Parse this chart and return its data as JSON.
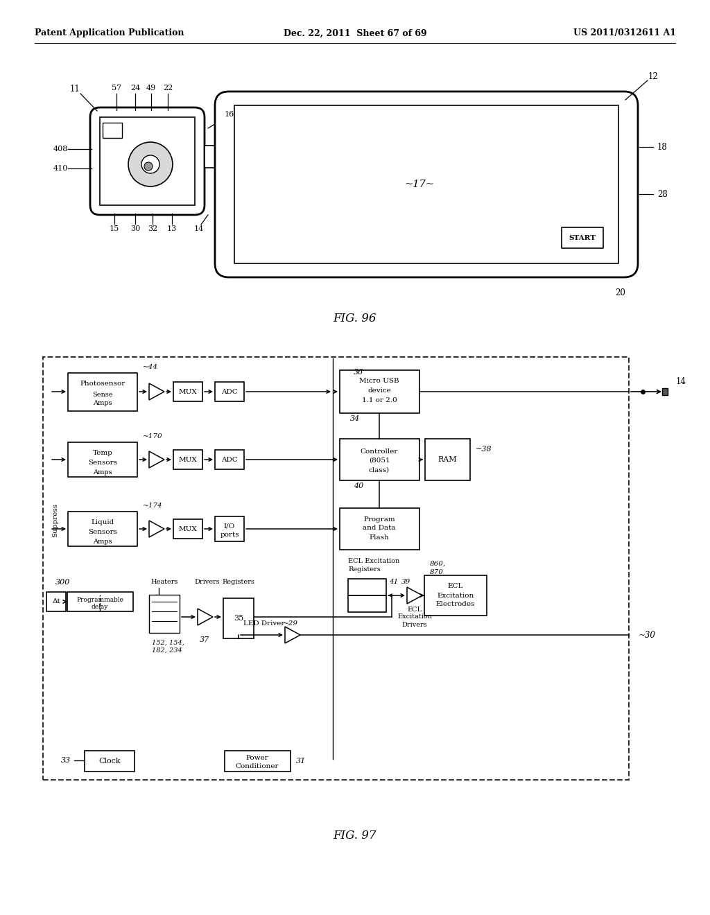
{
  "background_color": "#ffffff",
  "header_left": "Patent Application Publication",
  "header_center": "Dec. 22, 2011  Sheet 67 of 69",
  "header_right": "US 2011/0312611 A1",
  "fig96_label": "FIG. 96",
  "fig97_label": "FIG. 97"
}
